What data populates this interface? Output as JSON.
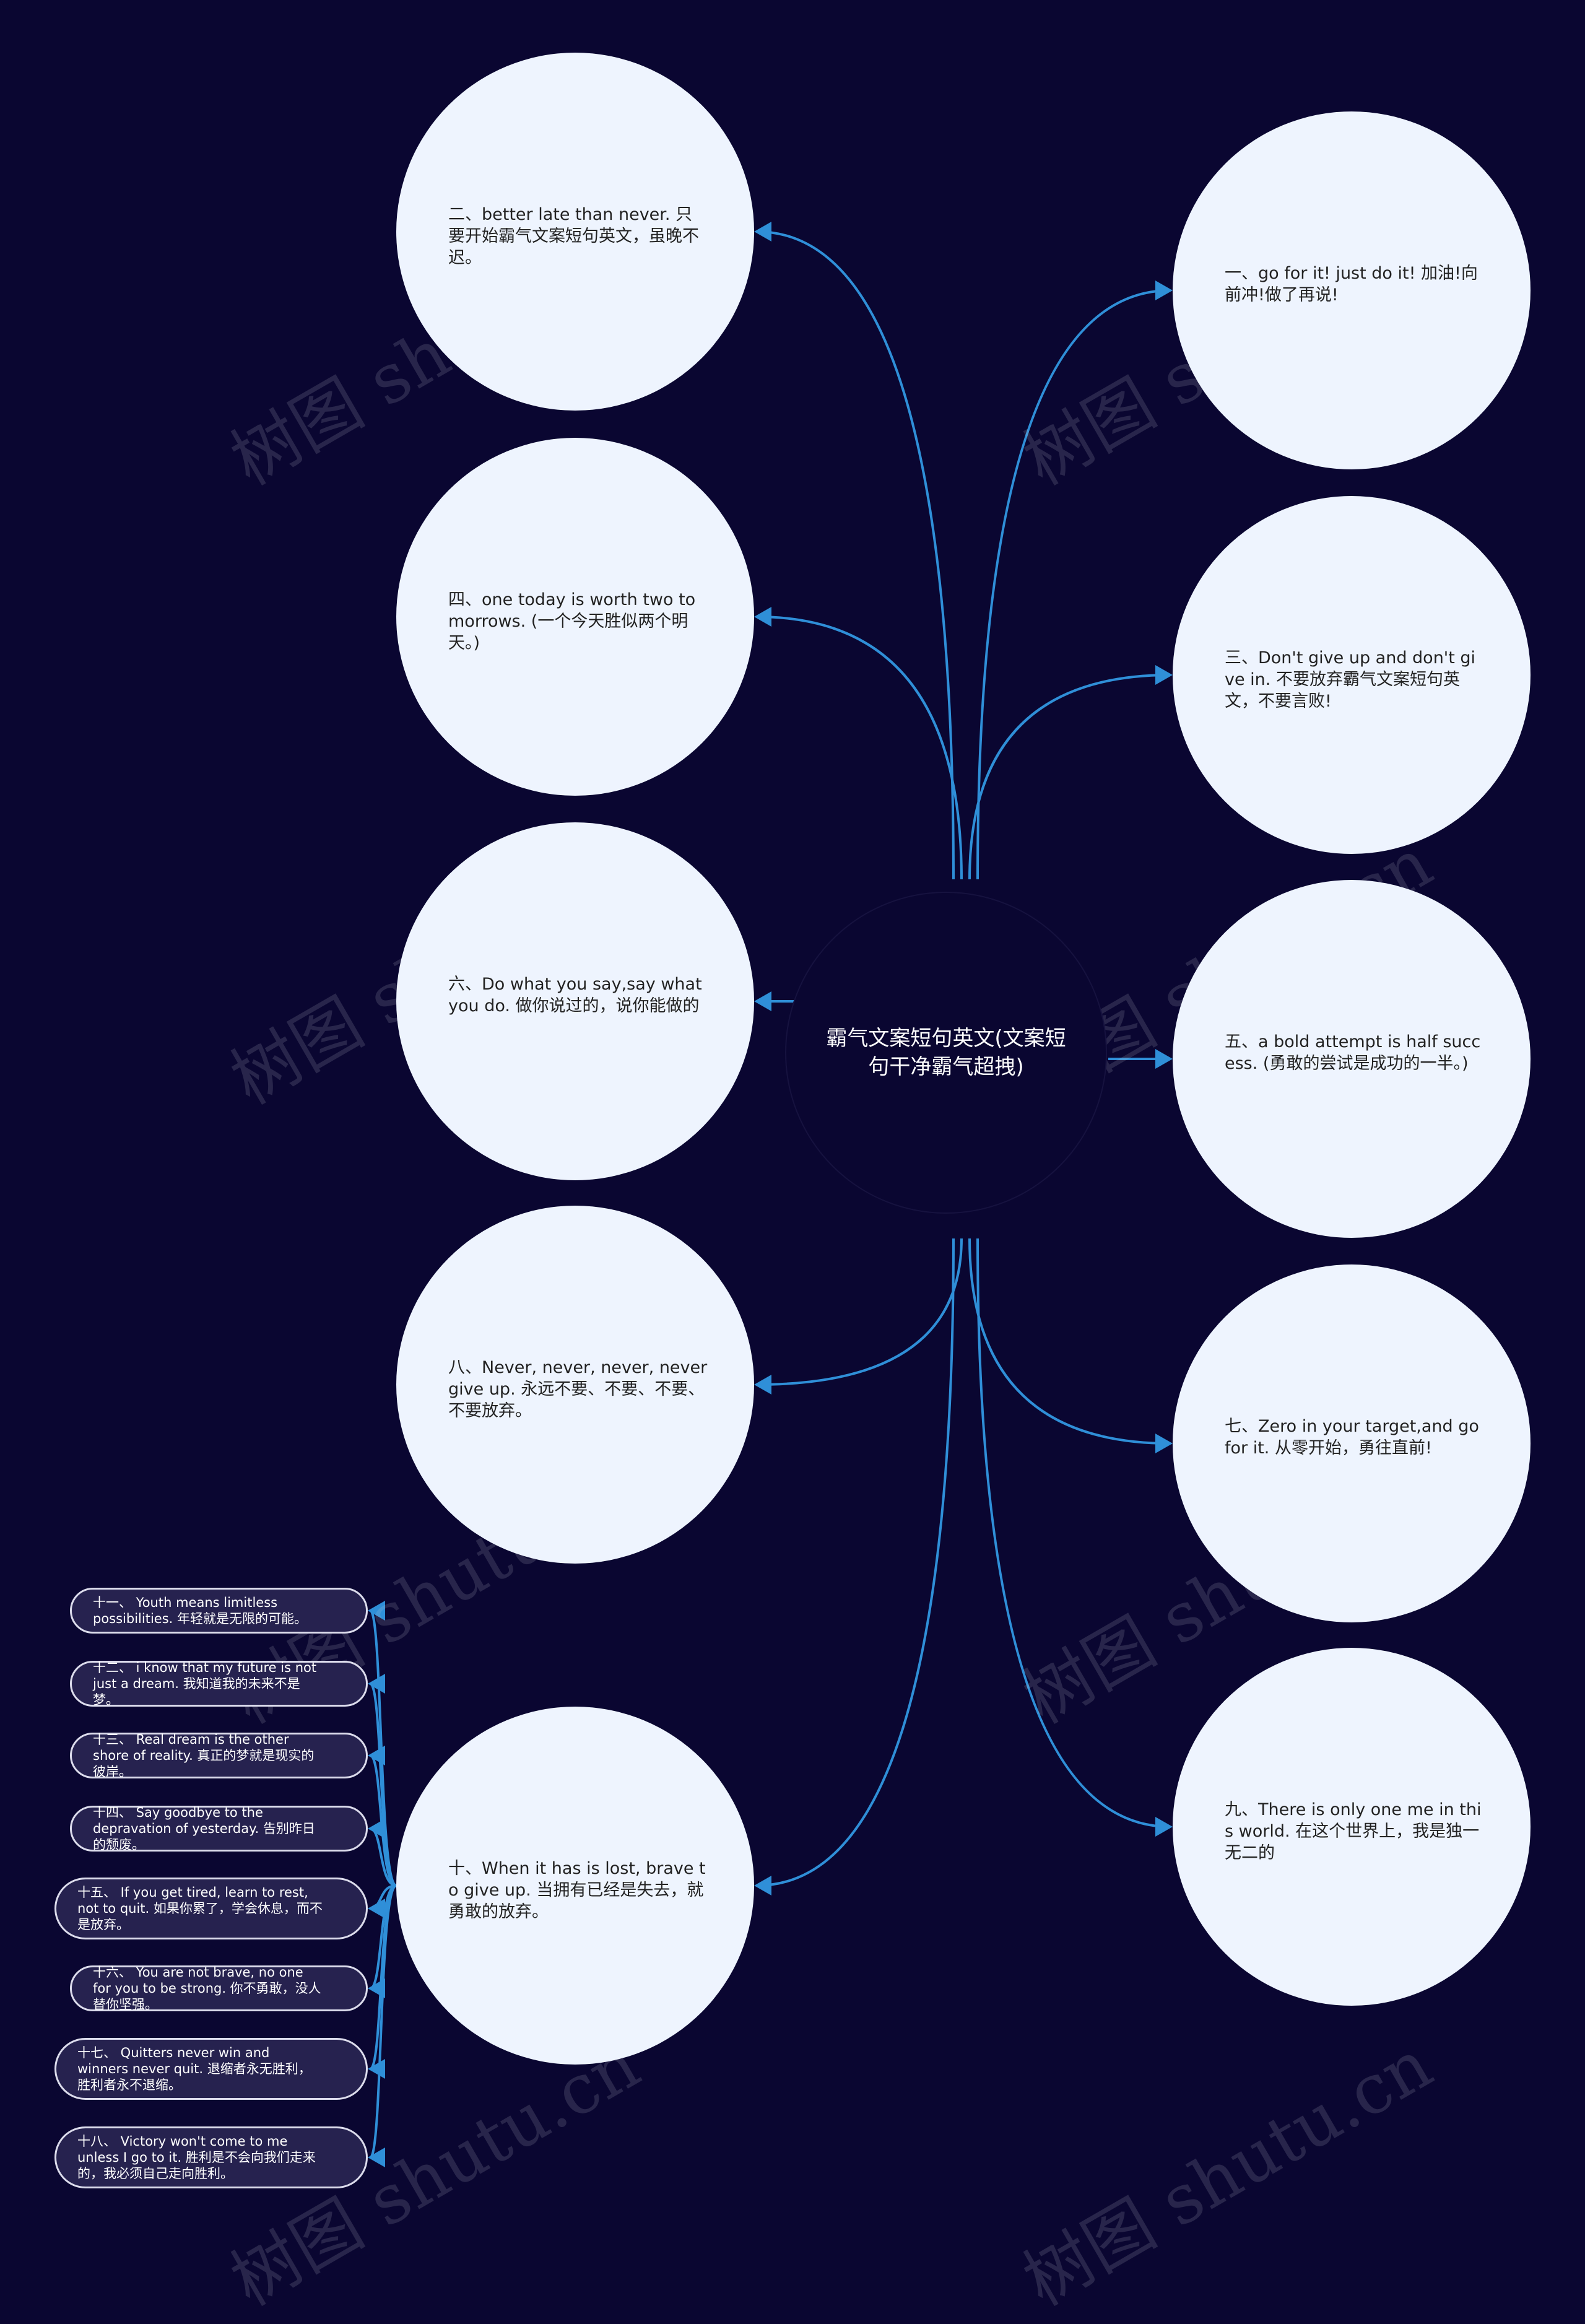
{
  "center": {
    "title": "霸气文案短句英文(文案短句干净霸气超拽)"
  },
  "colors": {
    "background": "#0a0631",
    "circle_fill": "#eef4fe",
    "pill_fill": "#26224f",
    "connector": "#2f8fd8"
  },
  "left_nodes": [
    "二、better late than never. 只要开始霸气文案短句英文，虽晚不迟。",
    "四、one today is worth two tomorrows. (一个今天胜似两个明天。)",
    "六、Do what you say,say what you do. 做你说过的，说你能做的",
    "八、Never, never, never, never give up. 永远不要、不要、不要、不要放弃。",
    "十、When it has is lost, brave to give up. 当拥有已经是失去，就勇敢的放弃。"
  ],
  "right_nodes": [
    "一、go for it! just do it! 加油!向前冲!做了再说!",
    "三、Don't give up and don't give in. 不要放弃霸气文案短句英文，不要言败!",
    "五、a bold attempt is half success. (勇敢的尝试是成功的一半。)",
    "七、Zero in your target,and go for it. 从零开始，勇往直前!",
    "九、There is only one me in this world. 在这个世界上，我是独一无二的"
  ],
  "sub_nodes": [
    "十一、 Youth means limitless possibilities. 年轻就是无限的可能。",
    "十二、 i know that my future is not just a dream. 我知道我的未来不是梦。",
    "十三、 Real dream is the other shore of reality. 真正的梦就是现实的彼岸。",
    "十四、 Say goodbye to the depravation of yesterday. 告别昨日的颓废。",
    "十五、 If you get tired, learn to rest, not to quit. 如果你累了，学会休息，而不是放弃。",
    "十六、 You are not brave, no one for you to be strong. 你不勇敢，没人替你坚强。",
    "十七、 Quitters never win and winners never quit. 退缩者永无胜利，胜利者永不退缩。",
    "十八、 Victory won't come to me unless I go to it. 胜利是不会向我们走来的，我必须自己走向胜利。"
  ],
  "watermark": "树图 shutu.cn"
}
